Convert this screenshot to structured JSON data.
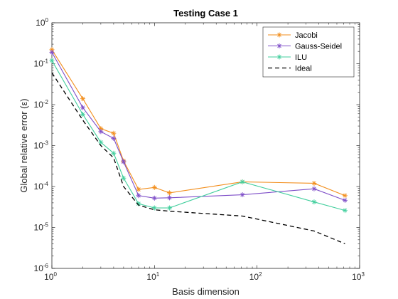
{
  "chart_data": {
    "type": "line",
    "title": "Testing Case 1",
    "xlabel": "Basis dimension",
    "ylabel": "Global relative error (ε)",
    "xscale": "log",
    "yscale": "log",
    "xlim": [
      1,
      1000
    ],
    "ylim": [
      1e-06,
      1
    ],
    "x_ticks": [
      {
        "base": "10",
        "exp": "0",
        "value": 1
      },
      {
        "base": "10",
        "exp": "1",
        "value": 10
      },
      {
        "base": "10",
        "exp": "2",
        "value": 100
      },
      {
        "base": "10",
        "exp": "3",
        "value": 1000
      }
    ],
    "y_ticks": [
      {
        "base": "10",
        "exp": "-6",
        "value": 1e-06
      },
      {
        "base": "10",
        "exp": "-5",
        "value": 1e-05
      },
      {
        "base": "10",
        "exp": "-4",
        "value": 0.0001
      },
      {
        "base": "10",
        "exp": "-3",
        "value": 0.001
      },
      {
        "base": "10",
        "exp": "-2",
        "value": 0.01
      },
      {
        "base": "10",
        "exp": "-1",
        "value": 0.1
      },
      {
        "base": "10",
        "exp": "0",
        "value": 1
      }
    ],
    "grid": false,
    "legend_position": "top-right",
    "series": [
      {
        "name": "Jacobi",
        "color": "#f28e1c",
        "marker": "asterisk",
        "line": "solid",
        "x": [
          1,
          2,
          3,
          4,
          5,
          7,
          10,
          14,
          72,
          360,
          720
        ],
        "y": [
          0.22,
          0.014,
          0.0026,
          0.002,
          0.00042,
          8.5e-05,
          9.5e-05,
          7e-05,
          0.00013,
          0.00012,
          6e-05
        ]
      },
      {
        "name": "Gauss-Seidel",
        "color": "#7e4ec8",
        "marker": "asterisk",
        "line": "solid",
        "x": [
          1,
          2,
          3,
          4,
          5,
          7,
          10,
          14,
          72,
          360,
          720
        ],
        "y": [
          0.19,
          0.0085,
          0.0022,
          0.0015,
          0.0004,
          6e-05,
          5.2e-05,
          5.3e-05,
          6.3e-05,
          8.8e-05,
          4.6e-05
        ]
      },
      {
        "name": "ILU",
        "color": "#43cf9e",
        "marker": "asterisk",
        "line": "solid",
        "x": [
          1,
          2,
          3,
          4,
          5,
          7,
          10,
          14,
          72,
          360,
          720
        ],
        "y": [
          0.12,
          0.0058,
          0.0012,
          0.00065,
          0.00016,
          3.8e-05,
          3e-05,
          3e-05,
          0.00013,
          4.2e-05,
          2.6e-05
        ]
      },
      {
        "name": "Ideal",
        "color": "#000000",
        "marker": "none",
        "line": "dashed",
        "x": [
          1,
          2,
          3,
          4,
          5,
          7,
          10,
          14,
          72,
          360,
          720
        ],
        "y": [
          0.06,
          0.0042,
          0.001,
          0.0005,
          0.0001,
          3.5e-05,
          2.7e-05,
          2.5e-05,
          1.9e-05,
          8.2e-06,
          4e-06
        ]
      }
    ]
  }
}
